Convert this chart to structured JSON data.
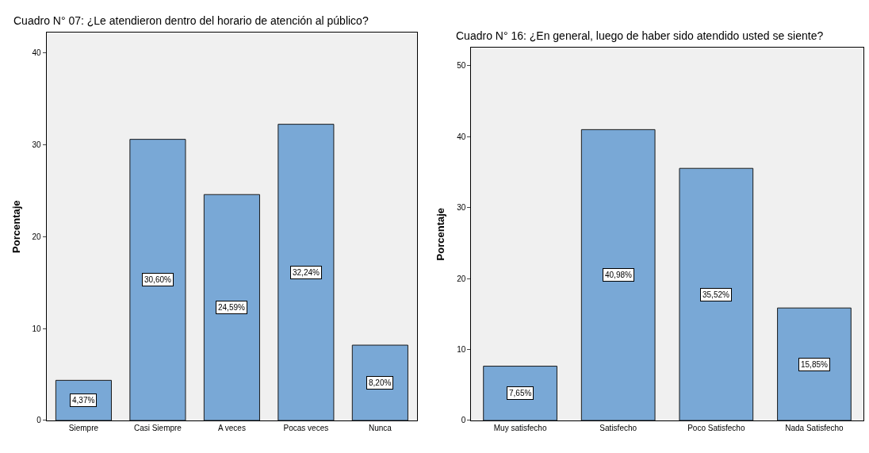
{
  "chart_data": [
    {
      "type": "bar",
      "title": "Cuadro N° 07: ¿Le atendieron dentro del horario de atención al público?",
      "ylabel": "Porcentaje",
      "categories": [
        "Siempre",
        "Casi Siempre",
        "A veces",
        "Pocas veces",
        "Nunca"
      ],
      "values": [
        4.37,
        30.6,
        24.59,
        32.24,
        8.2
      ],
      "value_labels": [
        "4,37%",
        "30,60%",
        "24,59%",
        "32,24%",
        "8,20%"
      ],
      "color": "#79a8d6",
      "ylim": [
        0,
        42.2
      ],
      "yticks": [
        0,
        10,
        20,
        30,
        40
      ]
    },
    {
      "type": "bar",
      "title": "Cuadro N° 16: ¿En general, luego de haber sido atendido usted se siente?",
      "ylabel": "Porcentaje",
      "categories": [
        "Muy satisfecho",
        "Satisfecho",
        "Poco Satisfecho",
        "Nada Satisfecho"
      ],
      "values": [
        7.65,
        40.98,
        35.52,
        15.85
      ],
      "value_labels": [
        "7,65%",
        "40,98%",
        "35,52%",
        "15,85%"
      ],
      "color": "#79a8d6",
      "ylim": [
        0,
        52.5
      ],
      "yticks": [
        0,
        10,
        20,
        30,
        40,
        50
      ]
    }
  ]
}
